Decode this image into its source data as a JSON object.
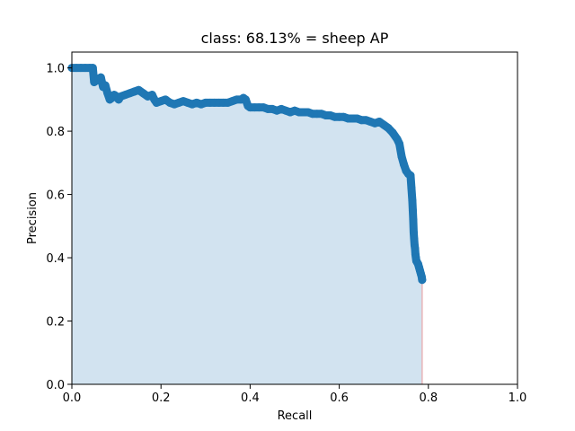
{
  "chart_data": {
    "type": "area",
    "title": "class: 68.13% = sheep AP",
    "xlabel": "Recall",
    "ylabel": "Precision",
    "xlim": [
      0,
      1
    ],
    "ylim": [
      0,
      1.05
    ],
    "xticks": [
      0.0,
      0.2,
      0.4,
      0.6,
      0.8,
      1.0
    ],
    "xtick_labels": [
      "0.0",
      "0.2",
      "0.4",
      "0.6",
      "0.8",
      "1.0"
    ],
    "yticks": [
      0.0,
      0.2,
      0.4,
      0.6,
      0.8,
      1.0
    ],
    "ytick_labels": [
      "0.0",
      "0.2",
      "0.4",
      "0.6",
      "0.8",
      "1.0"
    ],
    "grid": false,
    "legend": "none",
    "colors": {
      "marker": "#1f77b4",
      "fill": "#d2e3f0",
      "edge_line": "#e8b4b8"
    },
    "series": [
      {
        "x": [
          0.0,
          0.01,
          0.02,
          0.03,
          0.04,
          0.047,
          0.05,
          0.055,
          0.06,
          0.065,
          0.07,
          0.075,
          0.08,
          0.085,
          0.09,
          0.095,
          0.1,
          0.105,
          0.11,
          0.12,
          0.13,
          0.14,
          0.15,
          0.16,
          0.17,
          0.18,
          0.185,
          0.19,
          0.2,
          0.21,
          0.22,
          0.23,
          0.24,
          0.25,
          0.26,
          0.27,
          0.28,
          0.29,
          0.3,
          0.31,
          0.32,
          0.33,
          0.34,
          0.35,
          0.36,
          0.37,
          0.38,
          0.385,
          0.39,
          0.395,
          0.4,
          0.41,
          0.42,
          0.43,
          0.44,
          0.45,
          0.46,
          0.47,
          0.48,
          0.49,
          0.5,
          0.51,
          0.52,
          0.53,
          0.54,
          0.55,
          0.56,
          0.57,
          0.58,
          0.59,
          0.6,
          0.61,
          0.62,
          0.63,
          0.64,
          0.65,
          0.66,
          0.67,
          0.68,
          0.69,
          0.7,
          0.71,
          0.72,
          0.73,
          0.735,
          0.74,
          0.745,
          0.75,
          0.755,
          0.76,
          0.762,
          0.764,
          0.765,
          0.766,
          0.767,
          0.768,
          0.769,
          0.77,
          0.771,
          0.772,
          0.773,
          0.775,
          0.777,
          0.779,
          0.781,
          0.783,
          0.785,
          0.786
        ],
        "y": [
          1.0,
          1.0,
          1.0,
          1.0,
          1.0,
          1.0,
          0.955,
          0.96,
          0.965,
          0.97,
          0.94,
          0.945,
          0.92,
          0.9,
          0.905,
          0.915,
          0.91,
          0.9,
          0.91,
          0.915,
          0.92,
          0.925,
          0.93,
          0.92,
          0.91,
          0.915,
          0.9,
          0.89,
          0.895,
          0.9,
          0.89,
          0.885,
          0.89,
          0.895,
          0.89,
          0.885,
          0.89,
          0.885,
          0.89,
          0.89,
          0.89,
          0.89,
          0.89,
          0.89,
          0.895,
          0.9,
          0.9,
          0.905,
          0.9,
          0.88,
          0.875,
          0.875,
          0.875,
          0.875,
          0.87,
          0.87,
          0.865,
          0.87,
          0.865,
          0.86,
          0.865,
          0.86,
          0.86,
          0.86,
          0.855,
          0.855,
          0.855,
          0.85,
          0.85,
          0.845,
          0.845,
          0.845,
          0.84,
          0.84,
          0.84,
          0.835,
          0.835,
          0.83,
          0.825,
          0.83,
          0.82,
          0.81,
          0.795,
          0.775,
          0.76,
          0.72,
          0.695,
          0.675,
          0.665,
          0.66,
          0.62,
          0.58,
          0.55,
          0.52,
          0.48,
          0.46,
          0.44,
          0.43,
          0.41,
          0.4,
          0.39,
          0.385,
          0.38,
          0.37,
          0.36,
          0.35,
          0.34,
          0.33
        ]
      }
    ]
  }
}
